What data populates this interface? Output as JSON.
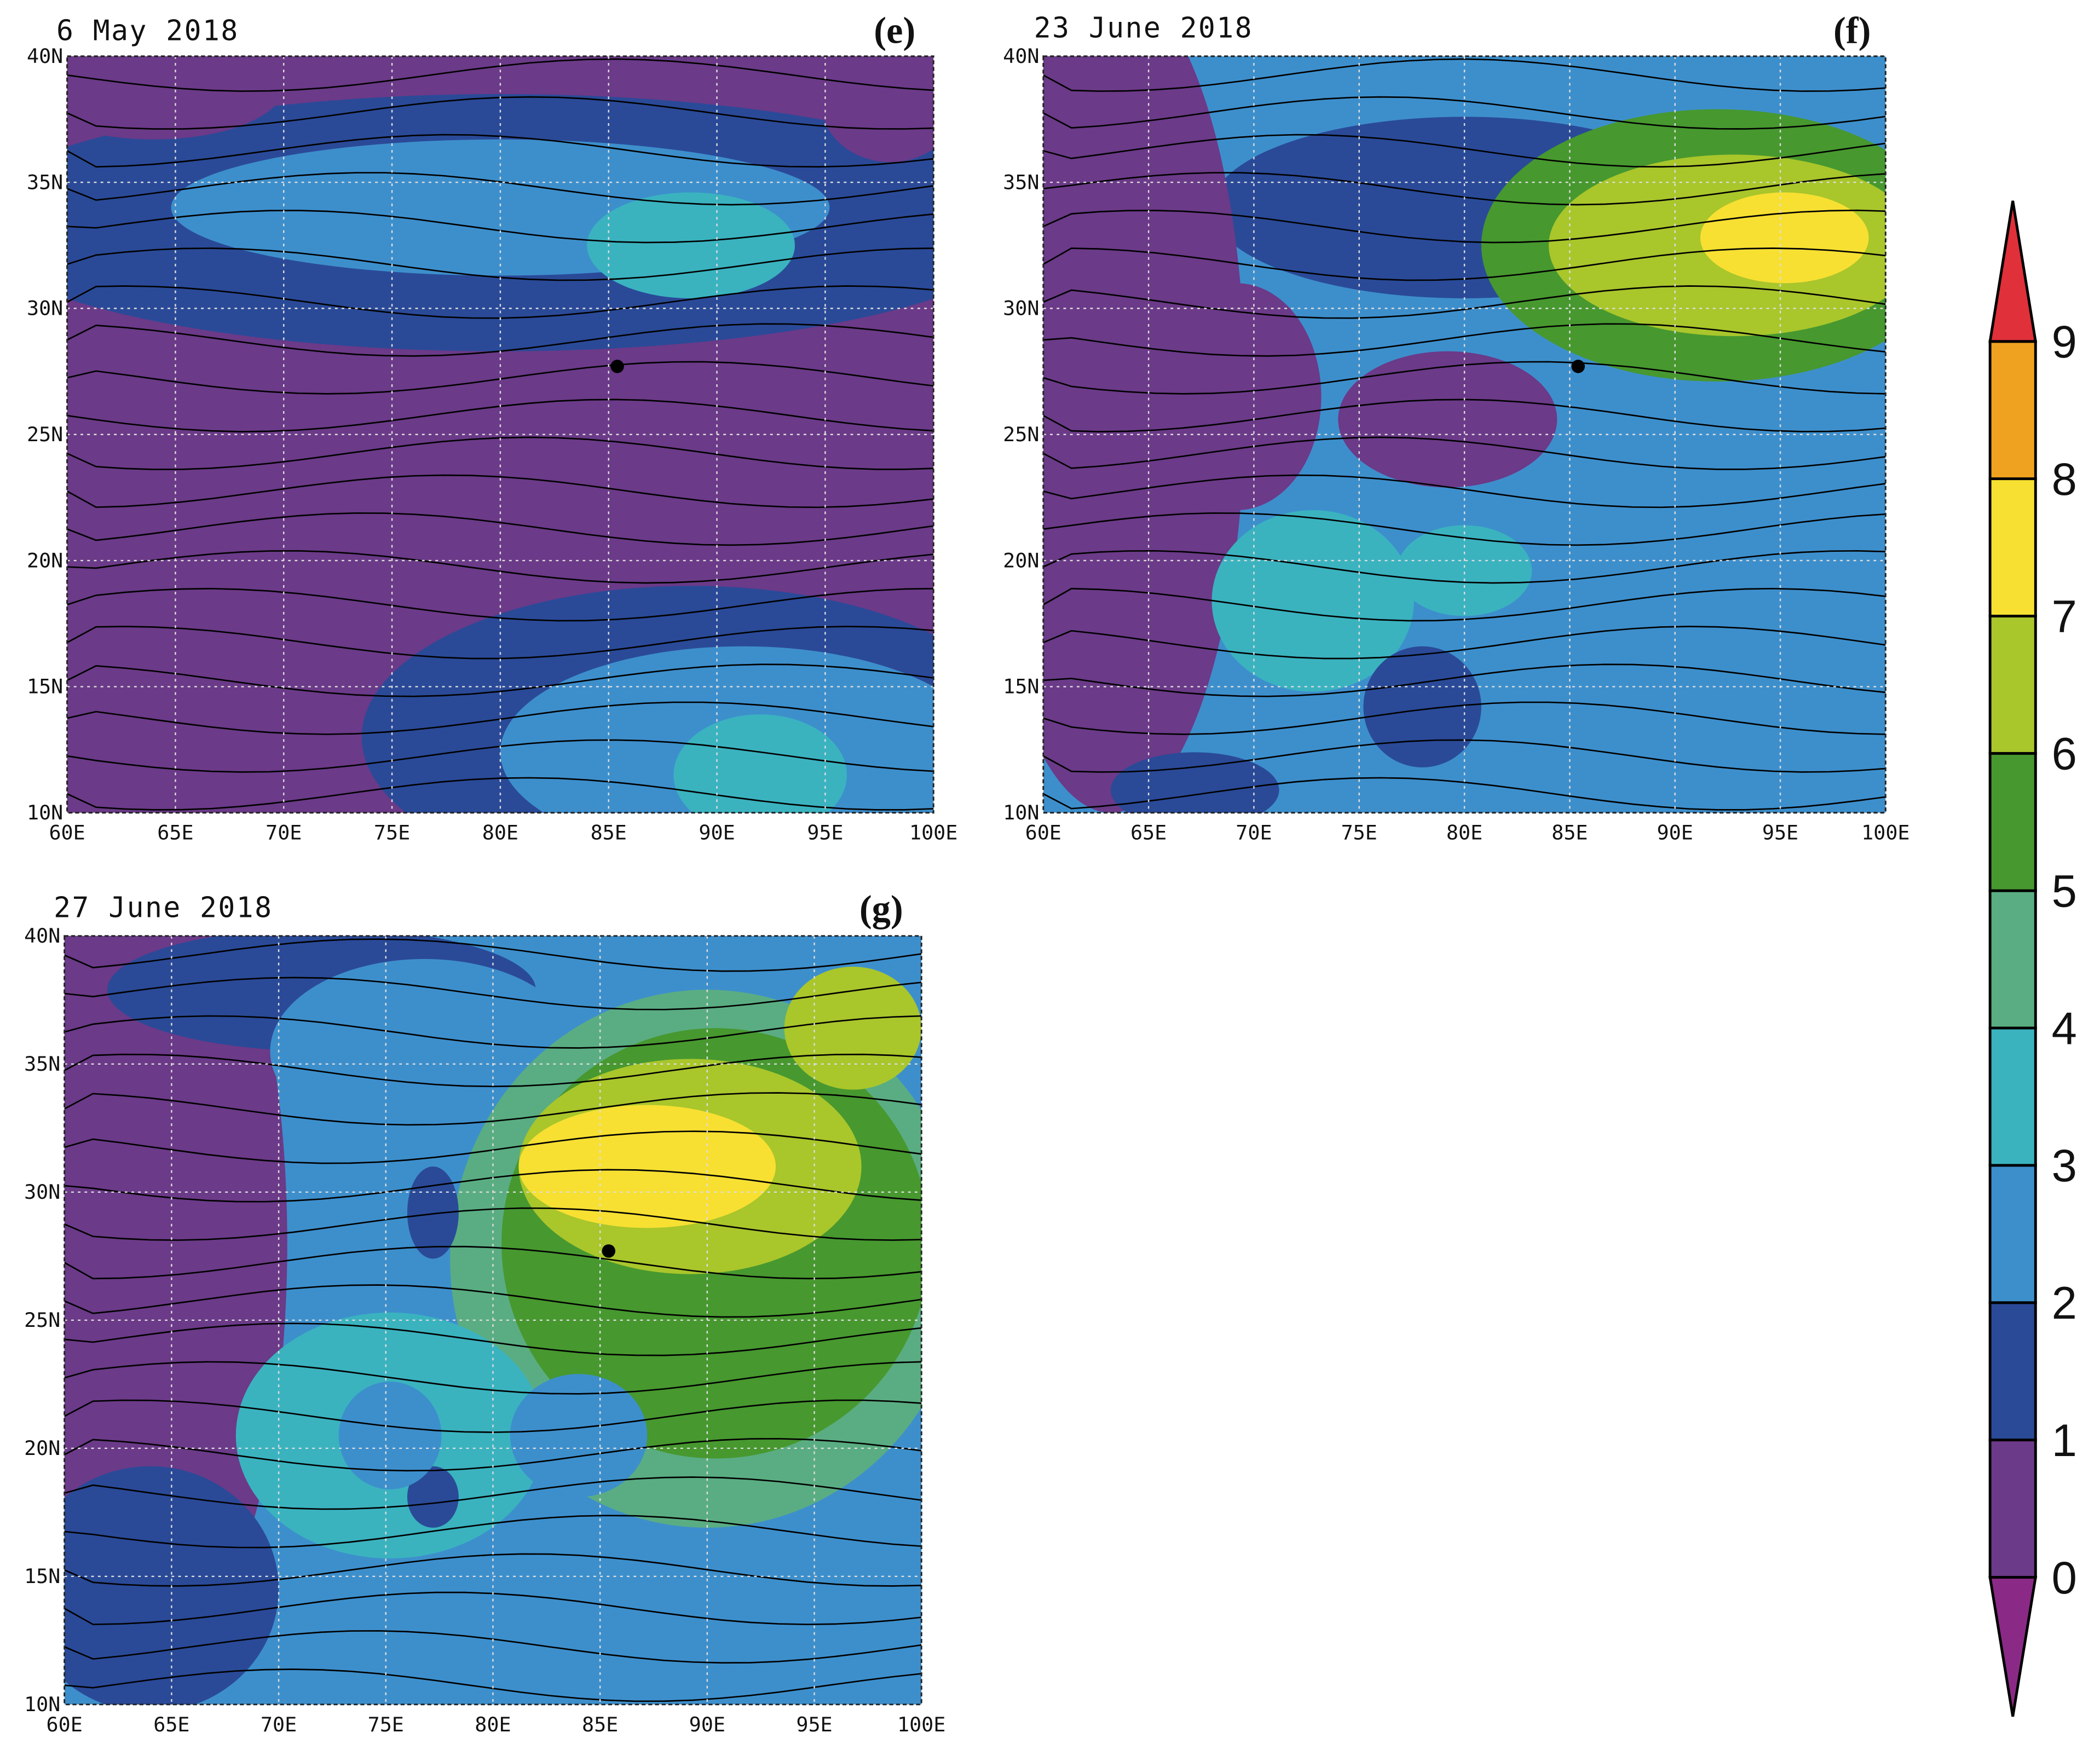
{
  "panels": [
    {
      "title": "6 May 2018",
      "label": "(e)",
      "xticks": [
        "60E",
        "65E",
        "70E",
        "75E",
        "80E",
        "85E",
        "90E",
        "95E",
        "100E"
      ],
      "yticks": [
        "40N",
        "35N",
        "30N",
        "25N",
        "20N",
        "15N",
        "10N"
      ]
    },
    {
      "title": "23 June 2018",
      "label": "(f)",
      "xticks": [
        "60E",
        "65E",
        "70E",
        "75E",
        "80E",
        "85E",
        "90E",
        "95E",
        "100E"
      ],
      "yticks": [
        "40N",
        "35N",
        "30N",
        "25N",
        "20N",
        "15N",
        "10N"
      ]
    },
    {
      "title": "27 June 2018",
      "label": "(g)",
      "xticks": [
        "60E",
        "65E",
        "70E",
        "75E",
        "80E",
        "85E",
        "90E",
        "95E",
        "100E"
      ],
      "yticks": [
        "40N",
        "35N",
        "30N",
        "25N",
        "20N",
        "15N",
        "10N"
      ]
    }
  ],
  "colorbar": {
    "levels": [
      0,
      1,
      2,
      3,
      4,
      5,
      6,
      7,
      8,
      9
    ],
    "colors": [
      "#8a2a86",
      "#6b3a88",
      "#2a4a98",
      "#3d8fcc",
      "#3ab3bf",
      "#5aad82",
      "#47982f",
      "#a9c62b",
      "#f7e032",
      "#eea21f",
      "#e0303a"
    ]
  }
}
